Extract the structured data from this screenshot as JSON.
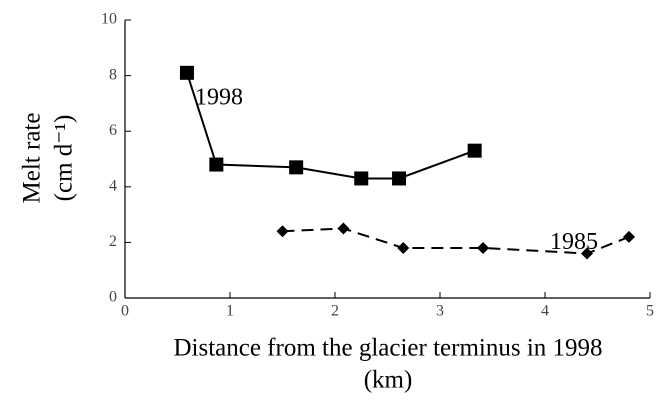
{
  "chart_data": {
    "type": "line",
    "xlabel": [
      "Distance from the glacier terminus in 1998",
      "(km)"
    ],
    "ylabel": [
      "Melt rate",
      "(cm d⁻¹)"
    ],
    "xlim": [
      0,
      5
    ],
    "xticks": [
      0,
      1,
      2,
      3,
      4,
      5
    ],
    "ylim": [
      0,
      10
    ],
    "yticks": [
      0,
      2,
      4,
      6,
      8,
      10
    ],
    "series": [
      {
        "name": "1998",
        "color": "#000000",
        "dash": false,
        "marker": "square",
        "x": [
          0.59,
          0.87,
          1.63,
          2.25,
          2.61,
          3.33
        ],
        "values": [
          8.1,
          4.8,
          4.7,
          4.3,
          4.3,
          5.3
        ]
      },
      {
        "name": "1985",
        "color": "#000000",
        "dash": true,
        "marker": "diamond",
        "x": [
          1.5,
          2.08,
          2.65,
          3.41,
          4.4,
          4.8
        ],
        "values": [
          2.4,
          2.5,
          1.8,
          1.8,
          1.6,
          2.2
        ]
      }
    ]
  }
}
